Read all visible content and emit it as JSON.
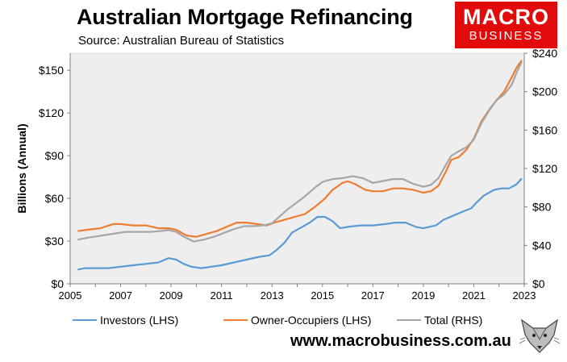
{
  "header": {
    "title": "Australian Mortgage Refinancing",
    "source": "Source: Australian Bureau of Statistics"
  },
  "logo": {
    "line1": "MACRO",
    "line2": "BUSINESS",
    "color": "#e10b0b"
  },
  "footer": {
    "url": "www.macrobusiness.com.au"
  },
  "chart_data": {
    "type": "line",
    "ylabel": "Billions (Annual)",
    "x_ticks": [
      "2005",
      "2007",
      "2009",
      "2011",
      "2013",
      "2015",
      "2017",
      "2019",
      "2021",
      "2023"
    ],
    "y_left_ticks": [
      "$0",
      "$30",
      "$60",
      "$90",
      "$120",
      "$150"
    ],
    "y_right_ticks": [
      "$0",
      "$40",
      "$80",
      "$120",
      "$160",
      "$200",
      "$240"
    ],
    "xlim": [
      2005,
      2023
    ],
    "ylim_left": [
      0,
      162
    ],
    "ylim_right": [
      0,
      240
    ],
    "grid": false,
    "plot_background": "#eeeeee",
    "legend_position": "bottom",
    "series": [
      {
        "name": "Investors (LHS)",
        "axis": "left",
        "color": "#5b9bd5",
        "points": [
          [
            2005.3,
            10
          ],
          [
            2005.6,
            11
          ],
          [
            2006,
            11
          ],
          [
            2006.5,
            11
          ],
          [
            2007,
            12
          ],
          [
            2007.5,
            13
          ],
          [
            2008,
            14
          ],
          [
            2008.5,
            15
          ],
          [
            2008.9,
            18
          ],
          [
            2009.2,
            17
          ],
          [
            2009.5,
            14
          ],
          [
            2009.8,
            12
          ],
          [
            2010.2,
            11
          ],
          [
            2010.6,
            12
          ],
          [
            2011,
            13
          ],
          [
            2011.5,
            15
          ],
          [
            2012,
            17
          ],
          [
            2012.5,
            19
          ],
          [
            2012.9,
            20
          ],
          [
            2013.2,
            24
          ],
          [
            2013.5,
            29
          ],
          [
            2013.8,
            36
          ],
          [
            2014.2,
            40
          ],
          [
            2014.5,
            43
          ],
          [
            2014.8,
            47
          ],
          [
            2015.1,
            47
          ],
          [
            2015.4,
            44
          ],
          [
            2015.7,
            39
          ],
          [
            2016,
            40
          ],
          [
            2016.5,
            41
          ],
          [
            2017,
            41
          ],
          [
            2017.5,
            42
          ],
          [
            2017.9,
            43
          ],
          [
            2018.3,
            43
          ],
          [
            2018.7,
            40
          ],
          [
            2019,
            39
          ],
          [
            2019.5,
            41
          ],
          [
            2019.8,
            45
          ],
          [
            2020.2,
            48
          ],
          [
            2020.6,
            51
          ],
          [
            2020.9,
            53
          ],
          [
            2021.1,
            57
          ],
          [
            2021.4,
            62
          ],
          [
            2021.8,
            66
          ],
          [
            2022.1,
            67
          ],
          [
            2022.4,
            67
          ],
          [
            2022.7,
            70
          ],
          [
            2022.9,
            74
          ]
        ]
      },
      {
        "name": "Owner-Occupiers (LHS)",
        "axis": "left",
        "color": "#ed7d31",
        "points": [
          [
            2005.3,
            37
          ],
          [
            2005.7,
            38
          ],
          [
            2006.2,
            39
          ],
          [
            2006.7,
            42
          ],
          [
            2007,
            42
          ],
          [
            2007.5,
            41
          ],
          [
            2008,
            41
          ],
          [
            2008.5,
            39
          ],
          [
            2008.9,
            39
          ],
          [
            2009.2,
            38
          ],
          [
            2009.6,
            34
          ],
          [
            2010,
            33
          ],
          [
            2010.4,
            35
          ],
          [
            2010.8,
            37
          ],
          [
            2011.2,
            40
          ],
          [
            2011.6,
            43
          ],
          [
            2012,
            43
          ],
          [
            2012.4,
            42
          ],
          [
            2012.8,
            41
          ],
          [
            2013.1,
            43
          ],
          [
            2013.5,
            45
          ],
          [
            2013.9,
            47
          ],
          [
            2014.3,
            49
          ],
          [
            2014.7,
            54
          ],
          [
            2015.1,
            60
          ],
          [
            2015.4,
            66
          ],
          [
            2015.8,
            71
          ],
          [
            2016,
            72
          ],
          [
            2016.3,
            70
          ],
          [
            2016.7,
            66
          ],
          [
            2017,
            65
          ],
          [
            2017.4,
            65
          ],
          [
            2017.8,
            67
          ],
          [
            2018.2,
            67
          ],
          [
            2018.6,
            66
          ],
          [
            2019,
            64
          ],
          [
            2019.3,
            65
          ],
          [
            2019.6,
            69
          ],
          [
            2019.9,
            79
          ],
          [
            2020.1,
            87
          ],
          [
            2020.4,
            89
          ],
          [
            2020.7,
            94
          ],
          [
            2021,
            102
          ],
          [
            2021.3,
            114
          ],
          [
            2021.6,
            122
          ],
          [
            2021.9,
            129
          ],
          [
            2022.2,
            135
          ],
          [
            2022.5,
            145
          ],
          [
            2022.7,
            152
          ],
          [
            2022.9,
            157
          ]
        ]
      },
      {
        "name": "Total (RHS)",
        "axis": "right",
        "color": "#a6a6a6",
        "points": [
          [
            2005.3,
            46
          ],
          [
            2005.7,
            48
          ],
          [
            2006.2,
            50
          ],
          [
            2006.7,
            52
          ],
          [
            2007.2,
            54
          ],
          [
            2007.7,
            54
          ],
          [
            2008.2,
            54
          ],
          [
            2008.6,
            55
          ],
          [
            2008.9,
            56
          ],
          [
            2009.2,
            54
          ],
          [
            2009.5,
            49
          ],
          [
            2009.9,
            44
          ],
          [
            2010.3,
            46
          ],
          [
            2010.7,
            49
          ],
          [
            2011.1,
            53
          ],
          [
            2011.5,
            57
          ],
          [
            2011.9,
            60
          ],
          [
            2012.3,
            60
          ],
          [
            2012.7,
            61
          ],
          [
            2013,
            63
          ],
          [
            2013.3,
            70
          ],
          [
            2013.6,
            77
          ],
          [
            2014,
            85
          ],
          [
            2014.3,
            91
          ],
          [
            2014.7,
            100
          ],
          [
            2015,
            106
          ],
          [
            2015.4,
            109
          ],
          [
            2015.8,
            110
          ],
          [
            2016.2,
            112
          ],
          [
            2016.6,
            110
          ],
          [
            2017,
            105
          ],
          [
            2017.4,
            107
          ],
          [
            2017.8,
            109
          ],
          [
            2018.2,
            109
          ],
          [
            2018.6,
            104
          ],
          [
            2019,
            101
          ],
          [
            2019.3,
            103
          ],
          [
            2019.6,
            110
          ],
          [
            2019.9,
            124
          ],
          [
            2020.1,
            133
          ],
          [
            2020.4,
            138
          ],
          [
            2020.7,
            142
          ],
          [
            2021,
            150
          ],
          [
            2021.3,
            167
          ],
          [
            2021.6,
            180
          ],
          [
            2021.9,
            191
          ],
          [
            2022.2,
            197
          ],
          [
            2022.5,
            207
          ],
          [
            2022.7,
            220
          ],
          [
            2022.9,
            231
          ]
        ]
      }
    ]
  }
}
